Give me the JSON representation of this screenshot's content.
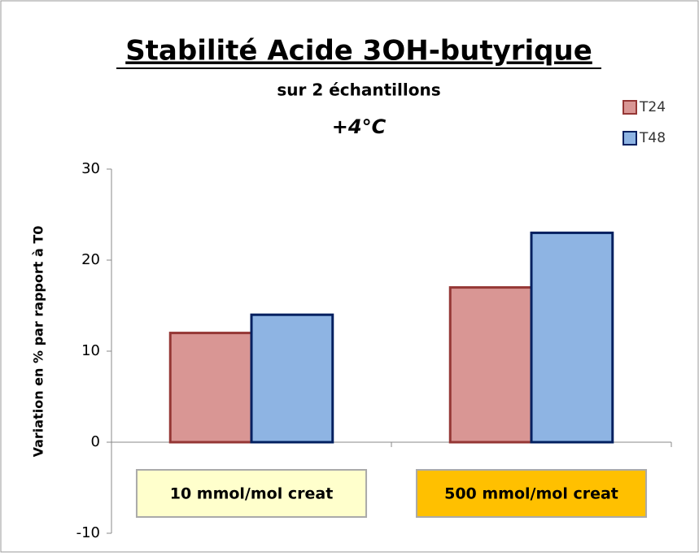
{
  "chart_data": {
    "type": "bar",
    "title": "Stabilité Acide 3OH-butyrique",
    "subtitle": "sur 2 échantillons",
    "annotation": "+4°C",
    "y_label": "Variation en % par rapport à T0",
    "categories": [
      "10 mmol/mol creat",
      "500 mmol/mol creat"
    ],
    "category_colors": [
      "#ffffcc",
      "#ffc000"
    ],
    "series": [
      {
        "name": "T24",
        "color": "#d99694",
        "edge": "#953735",
        "values": [
          12,
          17
        ]
      },
      {
        "name": "T48",
        "color": "#8eb4e3",
        "edge": "#002060",
        "values": [
          14,
          23
        ]
      }
    ],
    "ylim": [
      -10,
      30
    ],
    "yticks": [
      -10,
      0,
      10,
      20,
      30
    ],
    "legend": "top-right",
    "grid": false
  }
}
